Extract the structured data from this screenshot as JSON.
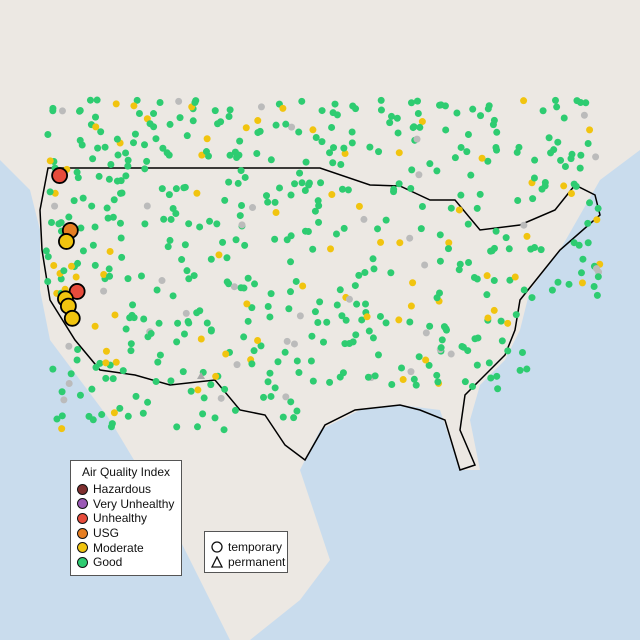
{
  "legend": {
    "title": "Air Quality Index",
    "categories": [
      {
        "label": "Hazardous",
        "color": "#7e2f2f"
      },
      {
        "label": "Very Unhealthy",
        "color": "#9b59b6"
      },
      {
        "label": "Unhealthy",
        "color": "#e74c3c"
      },
      {
        "label": "USG",
        "color": "#e67e22"
      },
      {
        "label": "Moderate",
        "color": "#f1c40f"
      },
      {
        "label": "Good",
        "color": "#2ecc71"
      }
    ],
    "monitor_types": [
      {
        "label": "temporary",
        "shape": "circle"
      },
      {
        "label": "permanent",
        "shape": "triangle"
      }
    ]
  },
  "colors": {
    "water": "#c9dced",
    "land": "#ece8e3",
    "no_data": "#bbbbbb",
    "border": "#000000"
  },
  "highlighted_stations": [
    {
      "lon": -122.5,
      "lat": 49.2,
      "category": "Unhealthy"
    },
    {
      "lon": -121.4,
      "lat": 44.7,
      "category": "USG"
    },
    {
      "lon": -121.8,
      "lat": 43.8,
      "category": "Moderate"
    },
    {
      "lon": -120.7,
      "lat": 39.7,
      "category": "Unhealthy"
    },
    {
      "lon": -121.9,
      "lat": 39.1,
      "category": "Moderate"
    },
    {
      "lon": -121.6,
      "lat": 38.5,
      "category": "Moderate"
    },
    {
      "lon": -121.2,
      "lat": 37.5,
      "category": "Moderate"
    }
  ]
}
